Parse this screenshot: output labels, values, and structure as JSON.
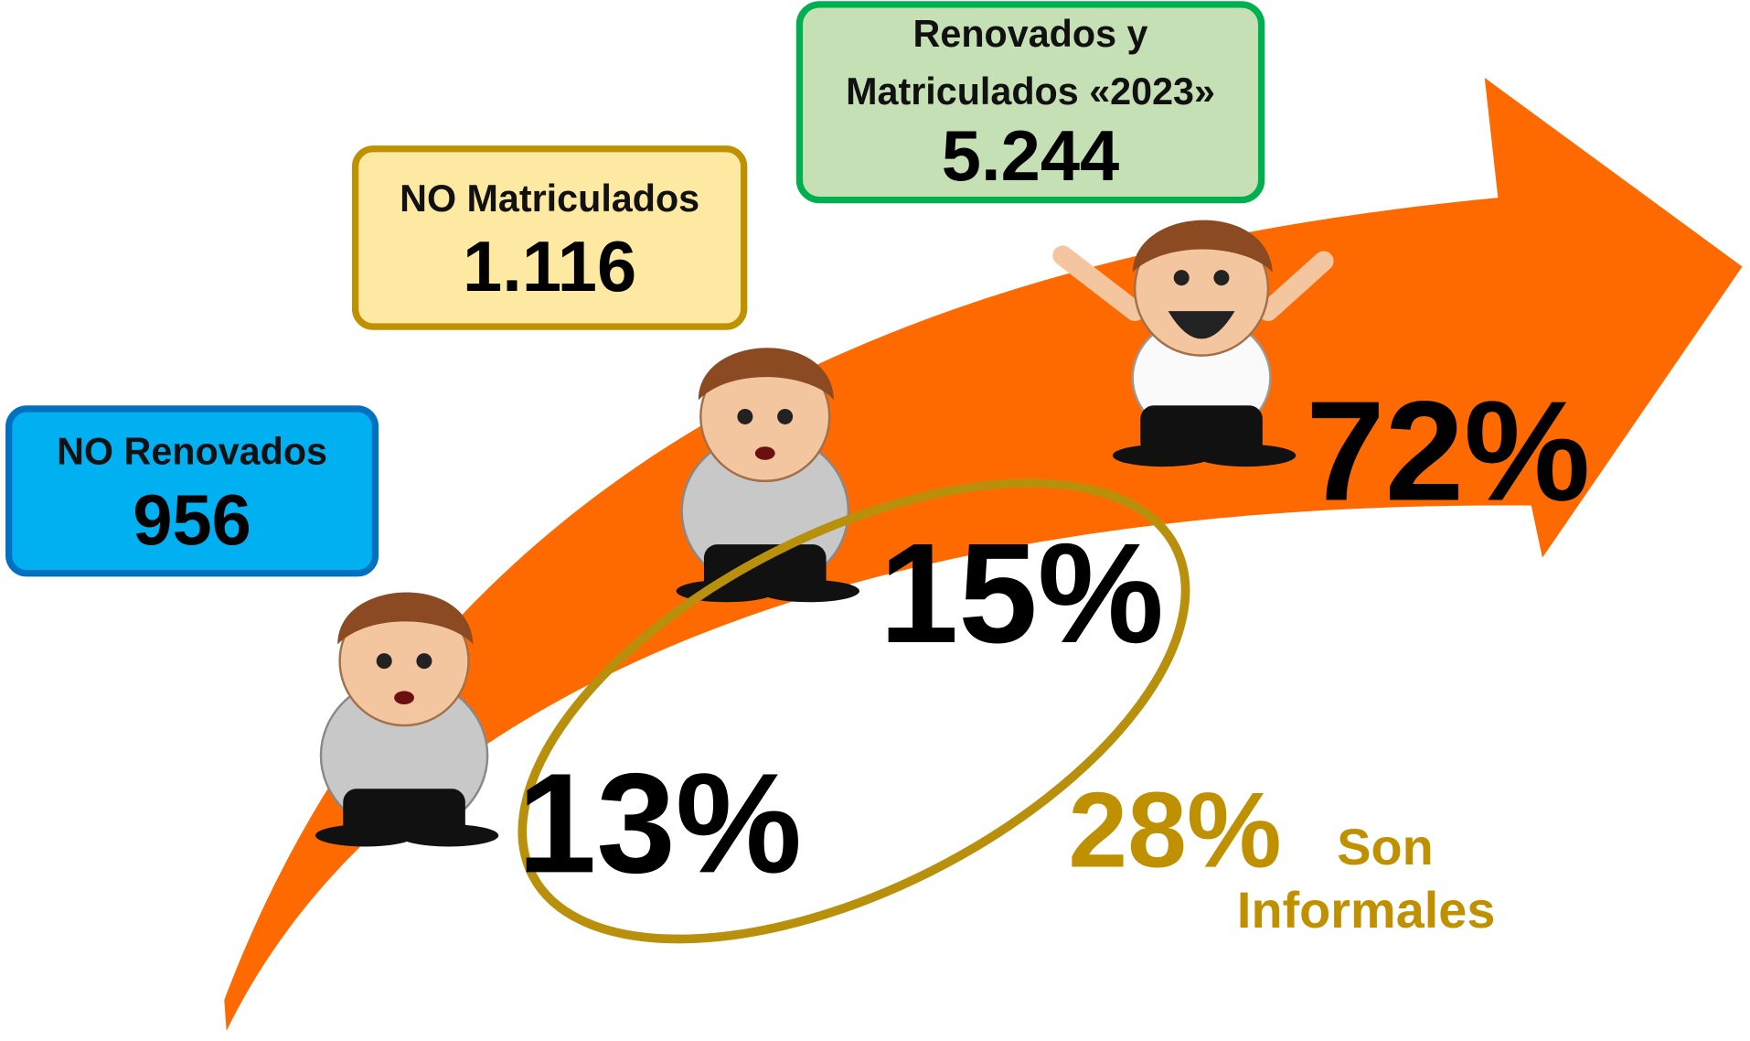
{
  "boxes": [
    {
      "label": [
        "NO Renovados"
      ],
      "value": "956",
      "percent": "13%"
    },
    {
      "label": [
        "NO Matriculados"
      ],
      "value": "1.116",
      "percent": "15%"
    },
    {
      "label": [
        "Renovados y",
        "Matriculados «2023»"
      ],
      "value": "5.244",
      "percent": "72%"
    }
  ],
  "summary": {
    "percent": "28%",
    "text": [
      "Son",
      "Informales"
    ]
  }
}
